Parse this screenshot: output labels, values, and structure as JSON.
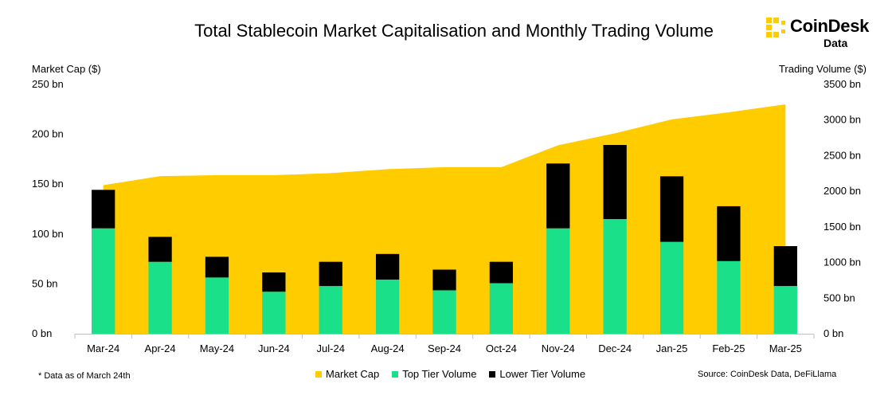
{
  "colors": {
    "market_cap": "#FFCC00",
    "top_tier": "#19E089",
    "lower_tier": "#000000",
    "axis": "#BFBFBF"
  },
  "logo": {
    "word": "CoinDesk",
    "sub": "Data",
    "icon": "coindesk-logo-icon"
  },
  "footnote": "* Data as of March 24th",
  "source": "Source: CoinDesk Data, DeFiLlama",
  "chart_data": {
    "type": "bar",
    "title": "Total Stablecoin Market Capitalisation and Monthly Trading Volume",
    "ylabel": "Market Cap ($)",
    "y2label": "Trading Volume ($)",
    "ylim": [
      0,
      250
    ],
    "y2lim": [
      0,
      3500
    ],
    "yticks": [
      "0 bn",
      "50 bn",
      "100 bn",
      "150 bn",
      "200 bn",
      "250 bn"
    ],
    "y2ticks": [
      "0 bn",
      "500 bn",
      "1000 bn",
      "1500 bn",
      "2000 bn",
      "2500 bn",
      "3000 bn",
      "3500 bn"
    ],
    "categories": [
      "Mar-24",
      "Apr-24",
      "May-24",
      "Jun-24",
      "Jul-24",
      "Aug-24",
      "Sep-24",
      "Oct-24",
      "Nov-24",
      "Dec-24",
      "Jan-25",
      "Feb-25",
      "Mar-25"
    ],
    "legend_position": "bottom",
    "grid": false,
    "series": [
      {
        "name": "Market Cap",
        "type": "area",
        "axis": "left",
        "values": [
          149,
          158,
          159,
          159,
          161,
          165,
          167,
          167,
          189,
          201,
          215,
          222,
          230
        ]
      },
      {
        "name": "Top Tier Volume",
        "type": "stacked-bar",
        "axis": "right",
        "values": [
          1480,
          1010,
          790,
          590,
          670,
          760,
          610,
          710,
          1480,
          1610,
          1290,
          1020,
          670
        ]
      },
      {
        "name": "Lower Tier Volume",
        "type": "stacked-bar",
        "axis": "right",
        "values": [
          540,
          350,
          290,
          270,
          340,
          360,
          290,
          300,
          910,
          1040,
          920,
          770,
          560
        ]
      }
    ]
  }
}
